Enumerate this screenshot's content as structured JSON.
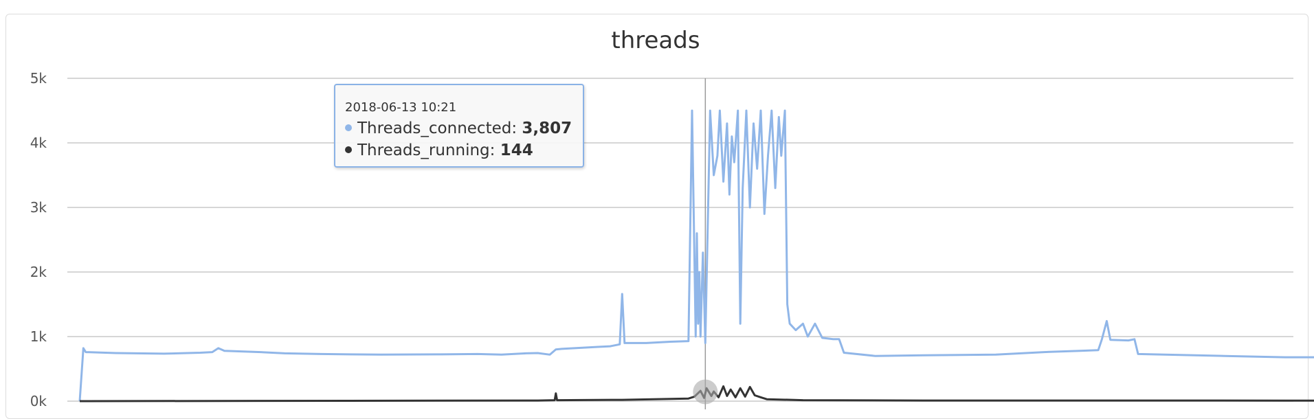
{
  "chart_data": {
    "type": "line",
    "title": "threads",
    "ylim": [
      0,
      5000
    ],
    "yticks": [
      "0k",
      "1k",
      "2k",
      "3k",
      "4k",
      "5k"
    ],
    "ytick_values": [
      0,
      1000,
      2000,
      3000,
      4000,
      5000
    ],
    "grid": true,
    "legend": "none",
    "x_index_range": [
      0,
      1000
    ],
    "series": [
      {
        "name": "Threads_connected",
        "color": "#90b6e8",
        "points": [
          [
            0,
            0
          ],
          [
            3,
            820
          ],
          [
            5,
            760
          ],
          [
            30,
            745
          ],
          [
            70,
            735
          ],
          [
            100,
            750
          ],
          [
            110,
            760
          ],
          [
            115,
            820
          ],
          [
            120,
            780
          ],
          [
            150,
            760
          ],
          [
            170,
            740
          ],
          [
            200,
            730
          ],
          [
            250,
            720
          ],
          [
            300,
            725
          ],
          [
            330,
            730
          ],
          [
            350,
            720
          ],
          [
            370,
            740
          ],
          [
            380,
            745
          ],
          [
            390,
            720
          ],
          [
            395,
            800
          ],
          [
            400,
            810
          ],
          [
            430,
            840
          ],
          [
            440,
            850
          ],
          [
            448,
            880
          ],
          [
            450,
            1660
          ],
          [
            452,
            900
          ],
          [
            470,
            900
          ],
          [
            490,
            920
          ],
          [
            505,
            930
          ],
          [
            508,
            4500
          ],
          [
            511,
            1000
          ],
          [
            512,
            2600
          ],
          [
            513,
            1200
          ],
          [
            514,
            2000
          ],
          [
            515,
            1000
          ],
          [
            517,
            2300
          ],
          [
            519,
            900
          ],
          [
            521,
            2700
          ],
          [
            523,
            4500
          ],
          [
            526,
            3500
          ],
          [
            529,
            3800
          ],
          [
            531,
            4500
          ],
          [
            534,
            3400
          ],
          [
            537,
            4300
          ],
          [
            539,
            3200
          ],
          [
            541,
            4100
          ],
          [
            543,
            3700
          ],
          [
            546,
            4500
          ],
          [
            548,
            1200
          ],
          [
            550,
            3300
          ],
          [
            553,
            4500
          ],
          [
            556,
            3000
          ],
          [
            559,
            4300
          ],
          [
            562,
            3600
          ],
          [
            565,
            4500
          ],
          [
            568,
            2900
          ],
          [
            571,
            3800
          ],
          [
            574,
            4500
          ],
          [
            577,
            3300
          ],
          [
            580,
            4400
          ],
          [
            582,
            3800
          ],
          [
            585,
            4500
          ],
          [
            587,
            1500
          ],
          [
            589,
            1200
          ],
          [
            594,
            1100
          ],
          [
            600,
            1200
          ],
          [
            604,
            1000
          ],
          [
            610,
            1200
          ],
          [
            616,
            980
          ],
          [
            625,
            960
          ],
          [
            630,
            960
          ],
          [
            634,
            750
          ],
          [
            660,
            700
          ],
          [
            700,
            710
          ],
          [
            760,
            720
          ],
          [
            800,
            760
          ],
          [
            830,
            780
          ],
          [
            845,
            790
          ],
          [
            848,
            960
          ],
          [
            852,
            1240
          ],
          [
            855,
            950
          ],
          [
            870,
            940
          ],
          [
            875,
            960
          ],
          [
            878,
            730
          ],
          [
            900,
            720
          ],
          [
            950,
            700
          ],
          [
            1000,
            680
          ],
          [
            1050,
            680
          ],
          [
            1100,
            670
          ],
          [
            1150,
            660
          ],
          [
            1200,
            660
          ],
          [
            1230,
            650
          ],
          [
            1245,
            630
          ]
        ]
      },
      {
        "name": "Threads_running",
        "color": "#333333",
        "points": [
          [
            0,
            0
          ],
          [
            380,
            10
          ],
          [
            394,
            15
          ],
          [
            395,
            120
          ],
          [
            396,
            15
          ],
          [
            450,
            20
          ],
          [
            505,
            40
          ],
          [
            510,
            70
          ],
          [
            515,
            160
          ],
          [
            518,
            50
          ],
          [
            520,
            200
          ],
          [
            524,
            80
          ],
          [
            526,
            150
          ],
          [
            530,
            60
          ],
          [
            534,
            230
          ],
          [
            537,
            80
          ],
          [
            540,
            180
          ],
          [
            544,
            60
          ],
          [
            548,
            200
          ],
          [
            552,
            70
          ],
          [
            556,
            220
          ],
          [
            560,
            90
          ],
          [
            565,
            60
          ],
          [
            570,
            30
          ],
          [
            600,
            15
          ],
          [
            700,
            10
          ],
          [
            1000,
            8
          ],
          [
            1245,
            8
          ]
        ]
      }
    ],
    "tooltip": {
      "time": "2018-06-13 10:21",
      "series": [
        {
          "name": "Threads_connected",
          "value": "3,807",
          "color": "#90b6e8"
        },
        {
          "name": "Threads_running",
          "value": "144",
          "color": "#333333"
        }
      ]
    },
    "crosshair_index": 519
  }
}
